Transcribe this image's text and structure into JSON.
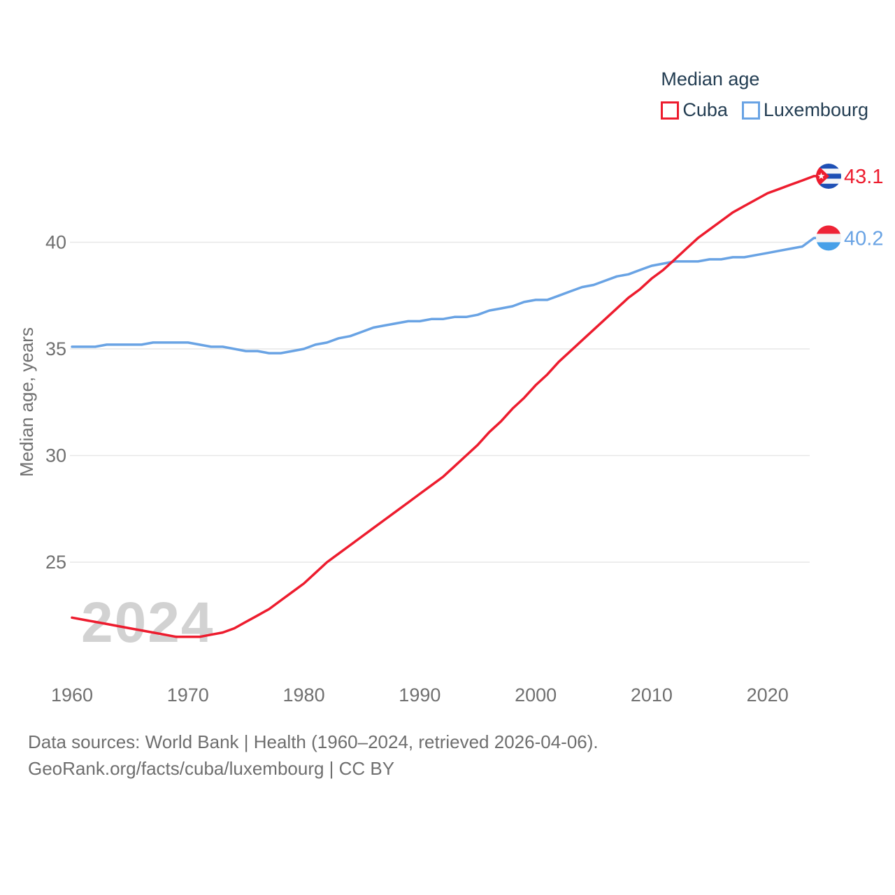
{
  "legend": {
    "title": "Median age"
  },
  "watermark": "2024",
  "footer": {
    "line1": "Data sources: World Bank | Health (1960–2024, retrieved 2026-04-06).",
    "line2": "GeoRank.org/facts/cuba/luxembourg | CC BY"
  },
  "colors": {
    "cuba_red": "#ed1c2e",
    "luxembourg_blue": "#69a3e4",
    "dark_text": "#233d52",
    "axis_gray": "#707070",
    "grid_gray": "#e7e7e7",
    "watermark_gray": "#d2d2d2",
    "flag_cuba_blue": "#1e50b5",
    "flag_cuba_red": "#ed1c2e",
    "flag_lux_red": "#ee2436",
    "flag_lux_blue": "#47a0e8"
  },
  "chart_data": {
    "type": "line",
    "title": "Median age",
    "ylabel": "Median age, years",
    "xlabel": "",
    "xlim": [
      1960,
      2024
    ],
    "ylim": [
      21,
      44.5
    ],
    "grid": "horizontal",
    "legend_position": "top-right",
    "xticks": [
      1960,
      1970,
      1980,
      1990,
      2000,
      2010,
      2020
    ],
    "yticks": [
      25,
      30,
      35,
      40
    ],
    "x": [
      1960,
      1961,
      1962,
      1963,
      1964,
      1965,
      1966,
      1967,
      1968,
      1969,
      1970,
      1971,
      1972,
      1973,
      1974,
      1975,
      1976,
      1977,
      1978,
      1979,
      1980,
      1981,
      1982,
      1983,
      1984,
      1985,
      1986,
      1987,
      1988,
      1989,
      1990,
      1991,
      1992,
      1993,
      1994,
      1995,
      1996,
      1997,
      1998,
      1999,
      2000,
      2001,
      2002,
      2003,
      2004,
      2005,
      2006,
      2007,
      2008,
      2009,
      2010,
      2011,
      2012,
      2013,
      2014,
      2015,
      2016,
      2017,
      2018,
      2019,
      2020,
      2021,
      2022,
      2023,
      2024
    ],
    "series": [
      {
        "name": "Cuba",
        "color": "#ed1c2e",
        "end_label": "43.1",
        "flag_icon": "cuba-flag-icon",
        "values": [
          22.4,
          22.3,
          22.2,
          22.1,
          22.0,
          21.9,
          21.8,
          21.7,
          21.6,
          21.5,
          21.5,
          21.5,
          21.6,
          21.7,
          21.9,
          22.2,
          22.5,
          22.8,
          23.2,
          23.6,
          24.0,
          24.5,
          25.0,
          25.4,
          25.8,
          26.2,
          26.6,
          27.0,
          27.4,
          27.8,
          28.2,
          28.6,
          29.0,
          29.5,
          30.0,
          30.5,
          31.1,
          31.6,
          32.2,
          32.7,
          33.3,
          33.8,
          34.4,
          34.9,
          35.4,
          35.9,
          36.4,
          36.9,
          37.4,
          37.8,
          38.3,
          38.7,
          39.2,
          39.7,
          40.2,
          40.6,
          41.0,
          41.4,
          41.7,
          42.0,
          42.3,
          42.5,
          42.7,
          42.9,
          43.1
        ]
      },
      {
        "name": "Luxembourg",
        "color": "#69a3e4",
        "end_label": "40.2",
        "flag_icon": "luxembourg-flag-icon",
        "values": [
          35.1,
          35.1,
          35.1,
          35.2,
          35.2,
          35.2,
          35.2,
          35.3,
          35.3,
          35.3,
          35.3,
          35.2,
          35.1,
          35.1,
          35.0,
          34.9,
          34.9,
          34.8,
          34.8,
          34.9,
          35.0,
          35.2,
          35.3,
          35.5,
          35.6,
          35.8,
          36.0,
          36.1,
          36.2,
          36.3,
          36.3,
          36.4,
          36.4,
          36.5,
          36.5,
          36.6,
          36.8,
          36.9,
          37.0,
          37.2,
          37.3,
          37.3,
          37.5,
          37.7,
          37.9,
          38.0,
          38.2,
          38.4,
          38.5,
          38.7,
          38.9,
          39.0,
          39.1,
          39.1,
          39.1,
          39.2,
          39.2,
          39.3,
          39.3,
          39.4,
          39.5,
          39.6,
          39.7,
          39.8,
          40.2
        ]
      }
    ]
  }
}
